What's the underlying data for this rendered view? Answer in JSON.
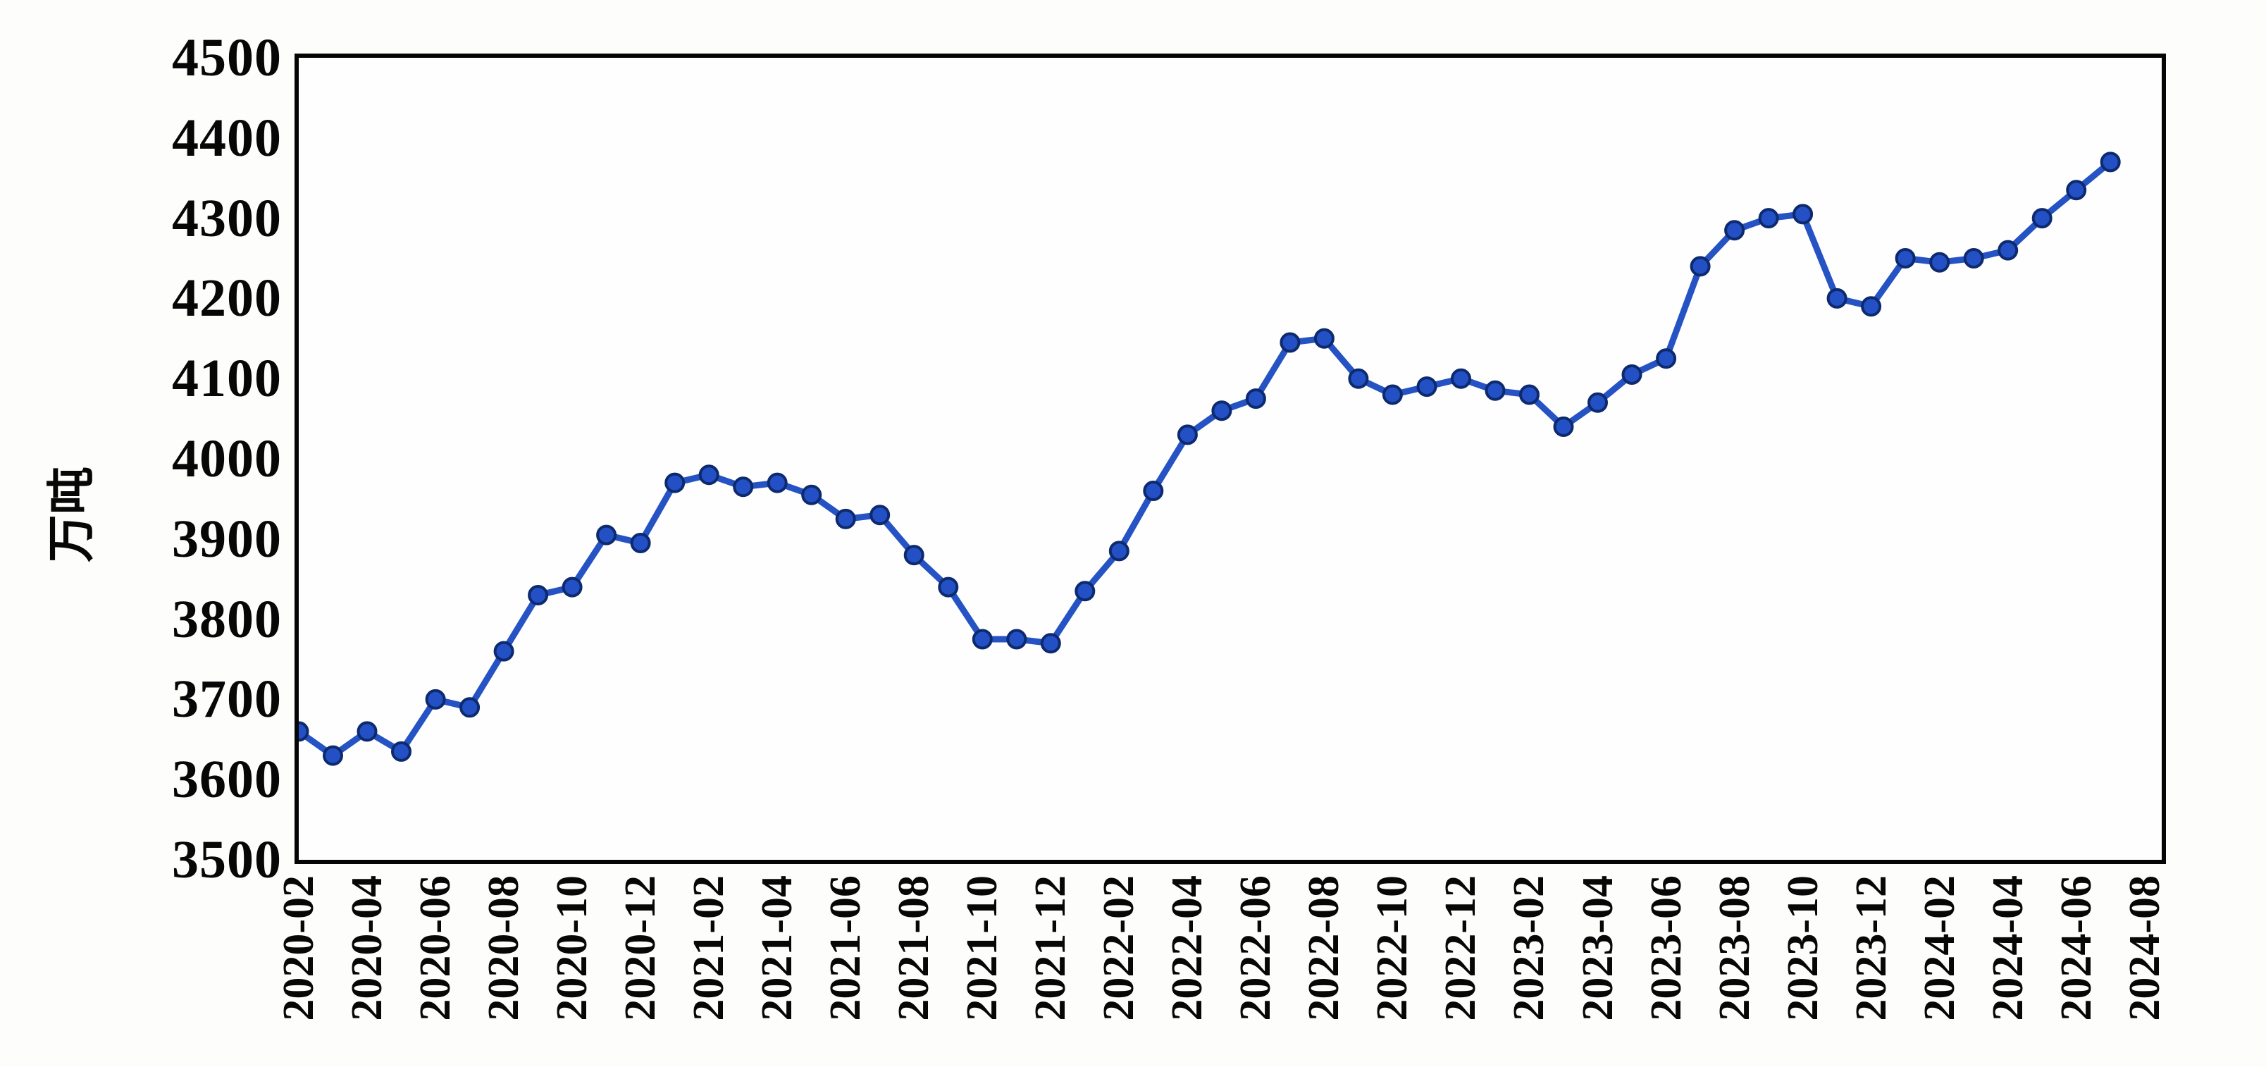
{
  "chart": {
    "background": "#fdfdfc",
    "border_color": "#050505",
    "line_color": "#2553c4",
    "marker_fill": "#2350c4",
    "marker_edge": "#0e2a6e"
  },
  "chart_data": {
    "type": "line",
    "title": "",
    "xlabel": "",
    "ylabel": "万吨",
    "ylim": [
      3500,
      4500
    ],
    "y_ticks": [
      3500,
      3600,
      3700,
      3800,
      3900,
      4000,
      4100,
      4200,
      4300,
      4400,
      4500
    ],
    "x_tick_labels": [
      "2020-02",
      "2020-04",
      "2020-06",
      "2020-08",
      "2020-10",
      "2020-12",
      "2021-02",
      "2021-04",
      "2021-06",
      "2021-08",
      "2021-10",
      "2021-12",
      "2022-02",
      "2022-04",
      "2022-06",
      "2022-08",
      "2022-10",
      "2022-12",
      "2023-02",
      "2023-04",
      "2023-06",
      "2023-08",
      "2023-10",
      "2023-12",
      "2024-02",
      "2024-04",
      "2024-06",
      "2024-08"
    ],
    "x": [
      "2020-02",
      "2020-03",
      "2020-04",
      "2020-05",
      "2020-06",
      "2020-07",
      "2020-08",
      "2020-09",
      "2020-10",
      "2020-11",
      "2020-12",
      "2021-01",
      "2021-02",
      "2021-03",
      "2021-04",
      "2021-05",
      "2021-06",
      "2021-07",
      "2021-08",
      "2021-09",
      "2021-10",
      "2021-11",
      "2021-12",
      "2022-01",
      "2022-02",
      "2022-03",
      "2022-04",
      "2022-05",
      "2022-06",
      "2022-07",
      "2022-08",
      "2022-09",
      "2022-10",
      "2022-11",
      "2022-12",
      "2023-01",
      "2023-02",
      "2023-03",
      "2023-04",
      "2023-05",
      "2023-06",
      "2023-07",
      "2023-08",
      "2023-09",
      "2023-10",
      "2023-11",
      "2023-12",
      "2024-01",
      "2024-02",
      "2024-03",
      "2024-04",
      "2024-05",
      "2024-06",
      "2024-07"
    ],
    "values": [
      3660,
      3630,
      3660,
      3635,
      3700,
      3690,
      3760,
      3830,
      3840,
      3905,
      3895,
      3970,
      3980,
      3965,
      3970,
      3955,
      3925,
      3930,
      3880,
      3840,
      3775,
      3775,
      3770,
      3835,
      3885,
      3960,
      4030,
      4060,
      4075,
      4145,
      4150,
      4100,
      4080,
      4090,
      4100,
      4085,
      4080,
      4040,
      4070,
      4105,
      4125,
      4240,
      4285,
      4300,
      4305,
      4200,
      4190,
      4250,
      4245,
      4250,
      4260,
      4300,
      4335,
      4370
    ],
    "grid": false,
    "legend": null,
    "marker": "circle"
  }
}
